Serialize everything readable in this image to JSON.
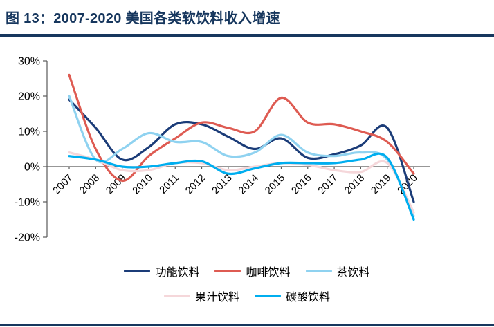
{
  "title": "图 13：2007-2020 美国各类软饮料收入增速",
  "colors": {
    "title": "#17375E",
    "rule": "#17375E",
    "axis": "#595959",
    "tick_text": "#000000"
  },
  "chart_data": {
    "type": "line",
    "title": "2007-2020 美国各类软饮料收入增速",
    "x": [
      "2007",
      "2008",
      "2009",
      "2010",
      "2011",
      "2012",
      "2013",
      "2014",
      "2015",
      "2016",
      "2017",
      "2018",
      "2019",
      "2020"
    ],
    "series": [
      {
        "name": "功能饮料",
        "color": "#1B3C78",
        "values": [
          19,
          11,
          2,
          5.5,
          12,
          12,
          8.5,
          5,
          8,
          2.5,
          3.5,
          6,
          11,
          -10
        ]
      },
      {
        "name": "咖啡饮料",
        "color": "#DE5B52",
        "values": [
          26,
          5,
          -4,
          3,
          8,
          12.5,
          11,
          10,
          19.5,
          12.5,
          12,
          10,
          7,
          -2
        ]
      },
      {
        "name": "茶饮料",
        "color": "#8FD2F0",
        "values": [
          20,
          2,
          5,
          9.5,
          7,
          7,
          3,
          4,
          9,
          4,
          3,
          4,
          2,
          -14
        ]
      },
      {
        "name": "果汁饮料",
        "color": "#F5D7DA",
        "values": [
          4,
          2,
          -1,
          -1,
          1,
          1,
          -1,
          0,
          1,
          0.5,
          -1,
          -1.5,
          1,
          -13
        ]
      },
      {
        "name": "碳酸饮料",
        "color": "#00AEEF",
        "values": [
          3,
          2,
          0,
          0,
          1,
          1.5,
          -2,
          -0.5,
          1,
          1,
          1,
          2,
          2.5,
          -15
        ]
      }
    ],
    "xlabel": "",
    "ylabel": "",
    "ylim": [
      -20,
      30
    ],
    "yticks": [
      "30%",
      "20%",
      "10%",
      "0%",
      "-10%",
      "-20%"
    ],
    "grid": false,
    "legend_position": "bottom",
    "x_label_rotation": -45
  }
}
